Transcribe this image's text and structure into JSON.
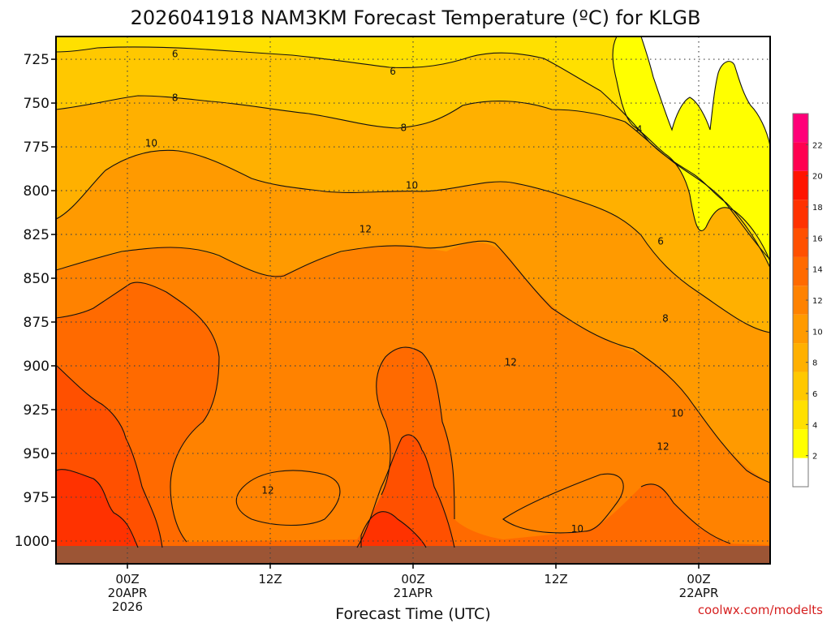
{
  "chart_data": {
    "type": "heatmap",
    "title": "2026041918 NAM3KM Forecast Temperature (ºC) for KLGB",
    "xlabel": "Forecast Time (UTC)",
    "ylabel": "",
    "credit": "coolwx.com/modelts",
    "x_range_hours": [
      -6,
      54
    ],
    "y_range_hpa": [
      712,
      1013
    ],
    "y_ticks": [
      "725",
      "750",
      "775",
      "800",
      "825",
      "850",
      "875",
      "900",
      "925",
      "950",
      "975",
      "1000"
    ],
    "x_ticks": [
      {
        "hour": 0,
        "lines": [
          "00Z",
          "20APR",
          "2026"
        ]
      },
      {
        "hour": 12,
        "lines": [
          "12Z"
        ]
      },
      {
        "hour": 24,
        "lines": [
          "00Z",
          "21APR"
        ]
      },
      {
        "hour": 36,
        "lines": [
          "12Z"
        ]
      },
      {
        "hour": 48,
        "lines": [
          "00Z",
          "22APR"
        ]
      }
    ],
    "colorbar": {
      "labels": [
        "2",
        "4",
        "6",
        "8",
        "10",
        "12",
        "14",
        "16",
        "18",
        "20",
        "22"
      ],
      "bounds": [
        0,
        24
      ],
      "colors": [
        "#ffffff",
        "#ffff00",
        "#ffe000",
        "#ffc800",
        "#ffb000",
        "#ff9a00",
        "#ff8200",
        "#ff6a00",
        "#ff5000",
        "#ff3200",
        "#ff1400",
        "#ff0050",
        "#ff0078"
      ]
    },
    "contour_labels": [
      {
        "text": "6",
        "hour": 4,
        "p": 722
      },
      {
        "text": "6",
        "hour": 22.3,
        "p": 732
      },
      {
        "text": "8",
        "hour": 4,
        "p": 747
      },
      {
        "text": "8",
        "hour": 23.2,
        "p": 764
      },
      {
        "text": "4",
        "hour": 43,
        "p": 765
      },
      {
        "text": "10",
        "hour": 2,
        "p": 773
      },
      {
        "text": "10",
        "hour": 23.9,
        "p": 797
      },
      {
        "text": "12",
        "hour": 20,
        "p": 822
      },
      {
        "text": "6",
        "hour": 44.8,
        "p": 829
      },
      {
        "text": "8",
        "hour": 45.2,
        "p": 873
      },
      {
        "text": "12",
        "hour": 32.2,
        "p": 898
      },
      {
        "text": "10",
        "hour": 46.2,
        "p": 927
      },
      {
        "text": "12",
        "hour": 11.8,
        "p": 971
      },
      {
        "text": "12",
        "hour": 45,
        "p": 946
      },
      {
        "text": "10",
        "hour": 37.8,
        "p": 993
      }
    ],
    "temperature_bands": [
      {
        "label": "3",
        "color": "#ffff00"
      },
      {
        "label": "5",
        "color": "#ffe000"
      },
      {
        "label": "7",
        "color": "#ffc800"
      },
      {
        "label": "9",
        "color": "#ffb000"
      },
      {
        "label": "11",
        "color": "#ff9a00"
      },
      {
        "label": "13",
        "color": "#ff8200"
      },
      {
        "label": "15",
        "color": "#ff6a00"
      },
      {
        "label": "17",
        "color": "#ff5000"
      },
      {
        "label": "19",
        "color": "#ff3200"
      },
      {
        "label": "21",
        "color": "#ff1400"
      }
    ]
  }
}
